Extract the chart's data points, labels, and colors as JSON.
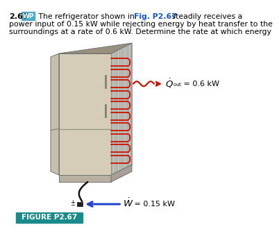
{
  "title_number": "2.67",
  "wp_label": "WP",
  "title_line1a": "2.67",
  "title_line1b": " The refrigerator shown in ",
  "title_line1c": "Fig. P2.67",
  "title_line1d": " steadily receives a",
  "title_line2": "power input of 0.15 kW while rejecting energy by heat transfer to the",
  "title_line3": "surroundings at a rate of 0.6 kW. Determine the rate at which energy",
  "qout_value": " = 0.6 kW",
  "wdot_value": " = 0.15 kW",
  "figure_label": "FIGURE P2.67",
  "fridge_front_color": "#d5cdb8",
  "fridge_side_color": "#b8b0a0",
  "fridge_top_color": "#9a9080",
  "fridge_left_color": "#c8c0b0",
  "fridge_base_color": "#b0a898",
  "fridge_vent_color": "#a0a098",
  "coil_color": "#cc1100",
  "fin_color": "#909090",
  "wp_bg": "#4eacc5",
  "figure_label_bg": "#1a8a8a",
  "text_blue": "#1155cc",
  "arrow_blue": "#2244cc"
}
